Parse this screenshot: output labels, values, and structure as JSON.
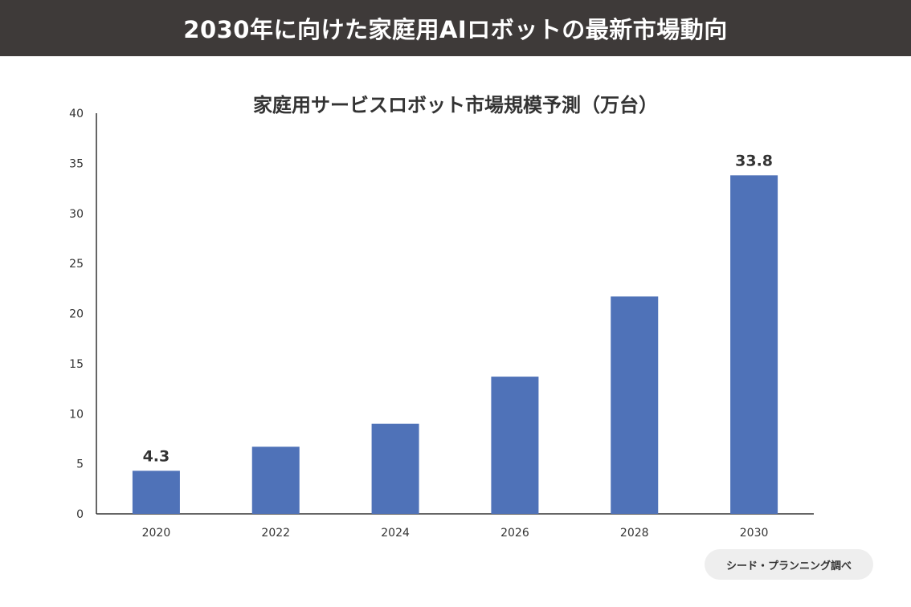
{
  "header": {
    "title": "2030年に向けた家庭用AIロボットの最新市場動向"
  },
  "source": {
    "label": "シード・プランニング調べ"
  },
  "colors": {
    "header_bg": "#3e3a39",
    "bar": "#4f72b8",
    "axis": "#333333"
  },
  "chart_data": {
    "type": "bar",
    "title": "家庭用サービスロボット市場規模予測（万台）",
    "categories": [
      "2020",
      "2022",
      "2024",
      "2026",
      "2028",
      "2030"
    ],
    "values": [
      4.3,
      6.7,
      9.0,
      13.7,
      21.7,
      33.8
    ],
    "data_labels": [
      "4.3",
      "",
      "",
      "",
      "",
      "33.8"
    ],
    "ylim": [
      0,
      40
    ],
    "yticks": [
      0,
      5,
      10,
      15,
      20,
      25,
      30,
      35,
      40
    ],
    "xlabel": "",
    "ylabel": "",
    "grid": false,
    "legend": "none"
  }
}
